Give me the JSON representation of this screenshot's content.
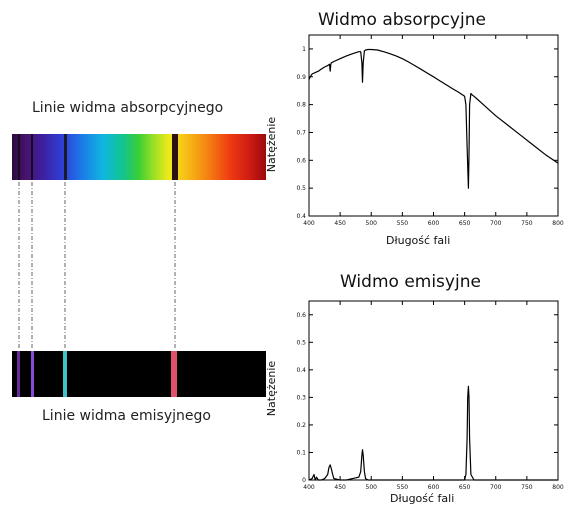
{
  "strips": {
    "absorption_label": "Linie widma absorpcyjnego",
    "emission_label": "Linie widma emisyjnego"
  },
  "chart_data": [
    {
      "type": "line",
      "title": "Widmo absorpcyjne",
      "xlabel": "Długość fali",
      "ylabel": "Natężenie",
      "xlim": [
        400,
        800
      ],
      "ylim": [
        0.4,
        1.05
      ],
      "xticks": [
        "400",
        "450",
        "500",
        "550",
        "600",
        "650",
        "700",
        "750",
        "800"
      ],
      "yticks": [
        "0.4",
        "0.5",
        "0.6",
        "0.7",
        "0.8",
        "0.9",
        "1"
      ],
      "x": [
        400,
        402,
        405,
        410,
        415,
        420,
        425,
        430,
        433,
        434,
        435,
        436,
        440,
        450,
        460,
        470,
        480,
        483,
        485,
        486,
        487,
        489,
        491,
        495,
        500,
        510,
        520,
        530,
        540,
        550,
        560,
        570,
        580,
        590,
        600,
        610,
        620,
        630,
        640,
        650,
        652,
        654,
        656,
        657,
        658,
        660,
        662,
        665,
        670,
        680,
        690,
        700,
        720,
        740,
        760,
        780,
        800
      ],
      "y": [
        0.89,
        0.9,
        0.91,
        0.915,
        0.92,
        0.928,
        0.935,
        0.94,
        0.945,
        0.92,
        0.945,
        0.95,
        0.955,
        0.965,
        0.975,
        0.983,
        0.99,
        0.99,
        0.95,
        0.88,
        0.95,
        0.993,
        0.996,
        0.998,
        0.998,
        0.996,
        0.99,
        0.983,
        0.975,
        0.965,
        0.953,
        0.94,
        0.927,
        0.913,
        0.9,
        0.886,
        0.872,
        0.858,
        0.845,
        0.83,
        0.8,
        0.65,
        0.5,
        0.62,
        0.8,
        0.84,
        0.835,
        0.83,
        0.82,
        0.8,
        0.78,
        0.76,
        0.725,
        0.69,
        0.655,
        0.62,
        0.59
      ],
      "grid": false
    },
    {
      "type": "line",
      "title": "Widmo emisyjne",
      "xlabel": "Długość fali",
      "ylabel": "Natężenie",
      "xlim": [
        400,
        800
      ],
      "ylim": [
        0,
        0.65
      ],
      "xticks": [
        "400",
        "450",
        "500",
        "550",
        "600",
        "650",
        "700",
        "750",
        "800"
      ],
      "yticks": [
        "0",
        "0.1",
        "0.2",
        "0.3",
        "0.4",
        "0.5",
        "0.6"
      ],
      "x": [
        400,
        405,
        408,
        410,
        412,
        415,
        420,
        425,
        430,
        432,
        434,
        436,
        438,
        440,
        450,
        460,
        470,
        480,
        483,
        485,
        486,
        487,
        489,
        491,
        495,
        500,
        550,
        600,
        640,
        650,
        652,
        654,
        655,
        656,
        657,
        658,
        660,
        665,
        700,
        750,
        800
      ],
      "y": [
        0.0,
        0.005,
        0.02,
        0.0,
        0.01,
        0.0,
        0.0,
        0.005,
        0.02,
        0.045,
        0.055,
        0.04,
        0.02,
        0.005,
        0.0,
        0.0,
        0.005,
        0.01,
        0.03,
        0.09,
        0.11,
        0.09,
        0.03,
        0.005,
        0.0,
        0.0,
        0.0,
        0.0,
        0.0,
        0.0,
        0.02,
        0.15,
        0.3,
        0.34,
        0.3,
        0.15,
        0.02,
        0.0,
        0.0,
        0.0,
        0.0
      ],
      "grid": false
    }
  ]
}
